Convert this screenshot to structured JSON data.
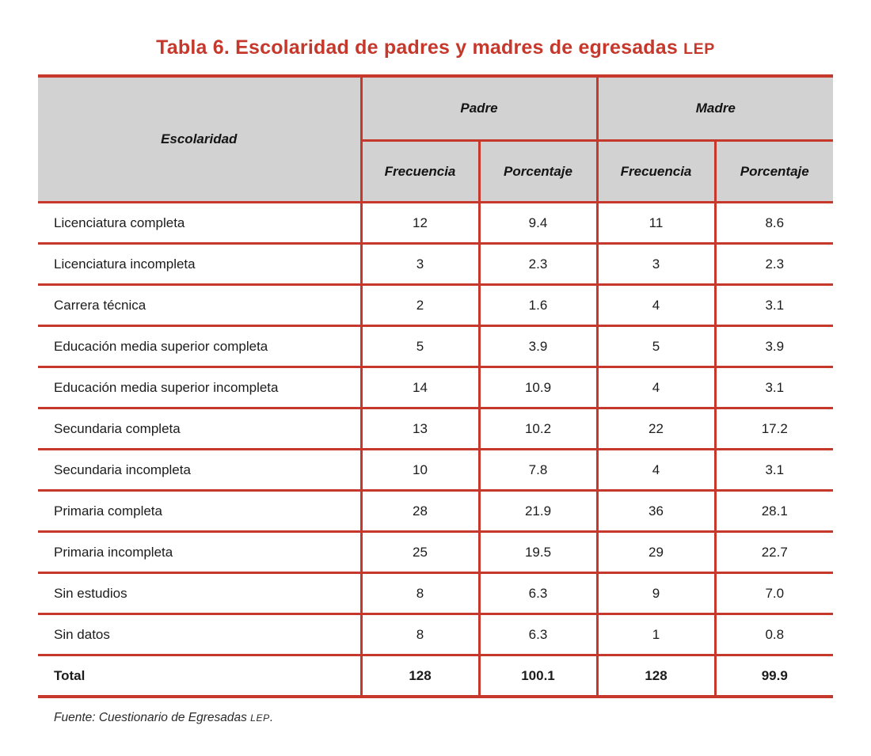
{
  "title": {
    "prefix": "Tabla 6. Escolaridad de padres y madres de egresadas",
    "acronym": "LEP"
  },
  "colors": {
    "accent_red": "#c5382b",
    "header_gray": "#d2d2d2",
    "text": "#1c1c1c",
    "background": "#ffffff"
  },
  "table": {
    "corner_header": "Escolaridad",
    "group_headers": [
      {
        "label": "Padre"
      },
      {
        "label": "Madre"
      }
    ],
    "sub_headers": [
      "Frecuencia",
      "Porcentaje",
      "Frecuencia",
      "Porcentaje"
    ],
    "rows": [
      {
        "label": "Licenciatura completa",
        "values": [
          "12",
          "9.4",
          "11",
          "8.6"
        ]
      },
      {
        "label": "Licenciatura incompleta",
        "values": [
          "3",
          "2.3",
          "3",
          "2.3"
        ]
      },
      {
        "label": "Carrera técnica",
        "values": [
          "2",
          "1.6",
          "4",
          "3.1"
        ]
      },
      {
        "label": "Educación media superior completa",
        "values": [
          "5",
          "3.9",
          "5",
          "3.9"
        ]
      },
      {
        "label": "Educación media superior incompleta",
        "values": [
          "14",
          "10.9",
          "4",
          "3.1"
        ]
      },
      {
        "label": "Secundaria completa",
        "values": [
          "13",
          "10.2",
          "22",
          "17.2"
        ]
      },
      {
        "label": "Secundaria incompleta",
        "values": [
          "10",
          "7.8",
          "4",
          "3.1"
        ]
      },
      {
        "label": "Primaria completa",
        "values": [
          "28",
          "21.9",
          "36",
          "28.1"
        ]
      },
      {
        "label": "Primaria incompleta",
        "values": [
          "25",
          "19.5",
          "29",
          "22.7"
        ]
      },
      {
        "label": "Sin estudios",
        "values": [
          "8",
          "6.3",
          "9",
          "7.0"
        ]
      },
      {
        "label": "Sin datos",
        "values": [
          "8",
          "6.3",
          "1",
          "0.8"
        ]
      }
    ],
    "total": {
      "label": "Total",
      "values": [
        "128",
        "100.1",
        "128",
        "99.9"
      ]
    }
  },
  "footer": {
    "prefix": "Fuente: Cuestionario de Egresadas",
    "acronym": "LEP",
    "suffix": "."
  }
}
